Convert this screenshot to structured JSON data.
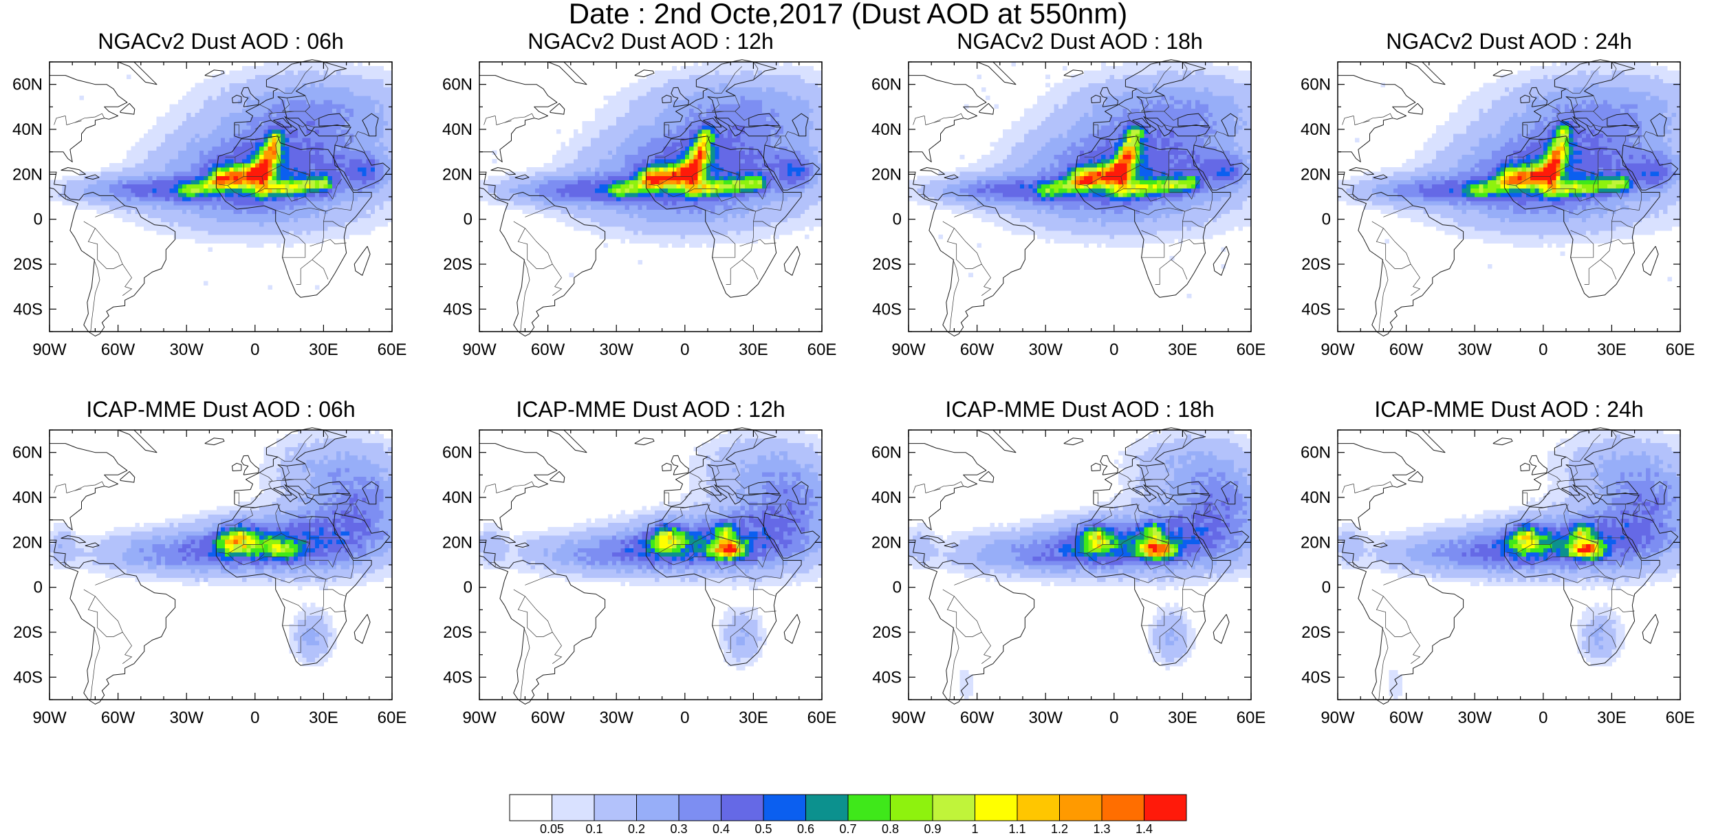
{
  "main_title": "Date : 2nd Octe,2017 (Dust AOD at 550nm)",
  "axes": {
    "lon_ticks": [
      "90W",
      "60W",
      "30W",
      "0",
      "30E",
      "60E"
    ],
    "lat_ticks": [
      "60N",
      "40N",
      "20N",
      "0",
      "20S",
      "40S"
    ]
  },
  "colorbar": {
    "labels": [
      "0.05",
      "0.1",
      "0.2",
      "0.3",
      "0.4",
      "0.5",
      "0.6",
      "0.7",
      "0.8",
      "0.9",
      "1",
      "1.1",
      "1.2",
      "1.3",
      "1.4"
    ],
    "colors": [
      "#ffffff",
      "#d9e1ff",
      "#b3c2fb",
      "#97aef8",
      "#7d8ef2",
      "#6569e6",
      "#0b5ff0",
      "#0c918e",
      "#3fe81a",
      "#8ef20e",
      "#c0f43a",
      "#ffff00",
      "#ffc600",
      "#ff9a00",
      "#ff6e00",
      "#ff1a0a"
    ]
  },
  "panels": [
    {
      "title": "NGACv2 Dust AOD : 06h",
      "model": "ngac",
      "hour": 6
    },
    {
      "title": "NGACv2 Dust AOD : 12h",
      "model": "ngac",
      "hour": 12
    },
    {
      "title": "NGACv2 Dust AOD : 18h",
      "model": "ngac",
      "hour": 18
    },
    {
      "title": "NGACv2 Dust AOD : 24h",
      "model": "ngac",
      "hour": 24
    },
    {
      "title": "ICAP-MME Dust AOD : 06h",
      "model": "icap",
      "hour": 6
    },
    {
      "title": "ICAP-MME Dust AOD : 12h",
      "model": "icap",
      "hour": 12
    },
    {
      "title": "ICAP-MME Dust AOD : 18h",
      "model": "icap",
      "hour": 18
    },
    {
      "title": "ICAP-MME Dust AOD : 24h",
      "model": "icap",
      "hour": 24
    }
  ]
}
